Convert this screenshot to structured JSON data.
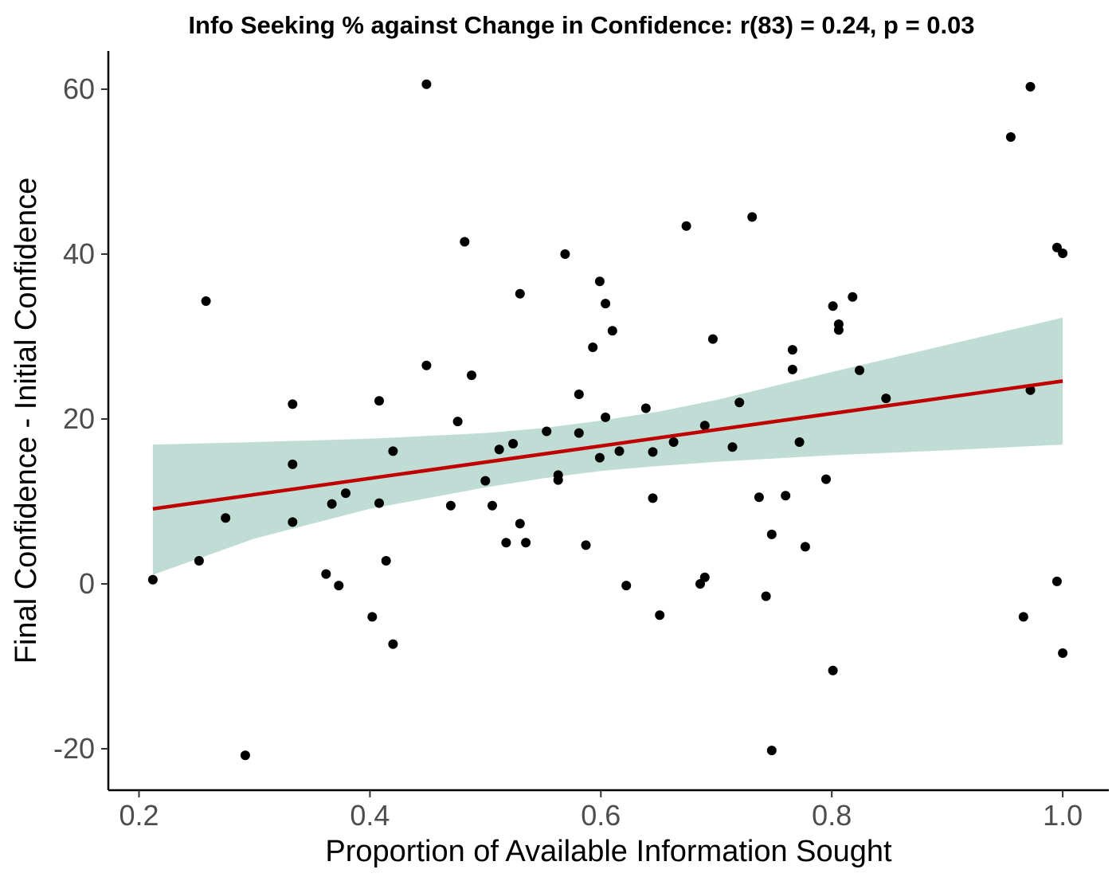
{
  "chart_data": {
    "type": "scatter",
    "title": "Info Seeking % against Change in Confidence: r(83) = 0.24, p = 0.03",
    "xlabel": "Proportion of Available Information Sought",
    "ylabel": "Final Confidence - Initial Confidence",
    "xlim": [
      0.18,
      1.04
    ],
    "ylim": [
      -25,
      65
    ],
    "xticks": [
      0.2,
      0.4,
      0.6,
      0.8,
      1.0
    ],
    "xtick_labels": [
      "0.2",
      "0.4",
      "0.6",
      "0.8",
      "1.0"
    ],
    "yticks": [
      -20,
      0,
      20,
      40,
      60
    ],
    "ytick_labels": [
      "-20",
      "0",
      "20",
      "40",
      "60"
    ],
    "grid": false,
    "legend": "none",
    "colors": {
      "points": "#000000",
      "fit_line": "#c00000",
      "ribbon": "#bfddd5",
      "axis": "#000000"
    },
    "points": [
      [
        0.212,
        0.5
      ],
      [
        0.252,
        2.8
      ],
      [
        0.258,
        34.3
      ],
      [
        0.275,
        8.0
      ],
      [
        0.292,
        -20.8
      ],
      [
        0.333,
        21.8
      ],
      [
        0.333,
        14.5
      ],
      [
        0.333,
        7.5
      ],
      [
        0.362,
        1.2
      ],
      [
        0.367,
        9.7
      ],
      [
        0.373,
        -0.2
      ],
      [
        0.379,
        11.0
      ],
      [
        0.402,
        -4.0
      ],
      [
        0.408,
        22.2
      ],
      [
        0.408,
        9.8
      ],
      [
        0.414,
        2.8
      ],
      [
        0.42,
        -7.3
      ],
      [
        0.42,
        16.1
      ],
      [
        0.449,
        60.6
      ],
      [
        0.449,
        26.5
      ],
      [
        0.47,
        9.5
      ],
      [
        0.476,
        19.7
      ],
      [
        0.482,
        41.5
      ],
      [
        0.488,
        25.3
      ],
      [
        0.5,
        12.5
      ],
      [
        0.506,
        9.5
      ],
      [
        0.512,
        16.3
      ],
      [
        0.518,
        5.0
      ],
      [
        0.524,
        17.0
      ],
      [
        0.53,
        7.3
      ],
      [
        0.53,
        35.2
      ],
      [
        0.535,
        5.0
      ],
      [
        0.553,
        18.5
      ],
      [
        0.563,
        13.2
      ],
      [
        0.563,
        12.6
      ],
      [
        0.569,
        40.0
      ],
      [
        0.581,
        23.0
      ],
      [
        0.581,
        18.3
      ],
      [
        0.587,
        4.7
      ],
      [
        0.593,
        28.7
      ],
      [
        0.599,
        36.7
      ],
      [
        0.599,
        15.3
      ],
      [
        0.604,
        34.0
      ],
      [
        0.604,
        20.2
      ],
      [
        0.61,
        30.7
      ],
      [
        0.616,
        16.1
      ],
      [
        0.622,
        -0.2
      ],
      [
        0.639,
        21.3
      ],
      [
        0.645,
        16.0
      ],
      [
        0.645,
        10.4
      ],
      [
        0.651,
        -3.8
      ],
      [
        0.663,
        17.2
      ],
      [
        0.674,
        43.4
      ],
      [
        0.686,
        0.0
      ],
      [
        0.69,
        0.8
      ],
      [
        0.69,
        19.2
      ],
      [
        0.697,
        29.7
      ],
      [
        0.714,
        16.6
      ],
      [
        0.72,
        22.0
      ],
      [
        0.731,
        44.5
      ],
      [
        0.737,
        10.5
      ],
      [
        0.743,
        -1.5
      ],
      [
        0.748,
        6.0
      ],
      [
        0.748,
        -20.2
      ],
      [
        0.76,
        10.7
      ],
      [
        0.766,
        28.4
      ],
      [
        0.766,
        26.0
      ],
      [
        0.772,
        17.2
      ],
      [
        0.777,
        4.5
      ],
      [
        0.795,
        12.7
      ],
      [
        0.801,
        33.7
      ],
      [
        0.801,
        -10.5
      ],
      [
        0.806,
        31.5
      ],
      [
        0.806,
        30.8
      ],
      [
        0.818,
        34.8
      ],
      [
        0.824,
        25.9
      ],
      [
        0.847,
        22.5
      ],
      [
        0.955,
        54.2
      ],
      [
        0.966,
        -4.0
      ],
      [
        0.972,
        60.3
      ],
      [
        0.972,
        23.5
      ],
      [
        0.995,
        40.8
      ],
      [
        0.995,
        0.3
      ],
      [
        1.0,
        40.1
      ],
      [
        1.0,
        -8.4
      ]
    ],
    "fit": {
      "x": [
        0.212,
        1.0
      ],
      "y": [
        9.1,
        24.6
      ]
    },
    "confidence_band": {
      "x": [
        0.212,
        0.3,
        0.4,
        0.5,
        0.55,
        0.6,
        0.65,
        0.7,
        0.8,
        0.9,
        1.0
      ],
      "lower": [
        1.1,
        5.5,
        9.1,
        11.7,
        12.8,
        13.7,
        14.3,
        14.8,
        15.6,
        16.2,
        16.9
      ],
      "upper": [
        16.9,
        17.2,
        17.6,
        18.3,
        18.9,
        19.8,
        20.9,
        22.3,
        25.7,
        29.0,
        32.3
      ]
    }
  }
}
